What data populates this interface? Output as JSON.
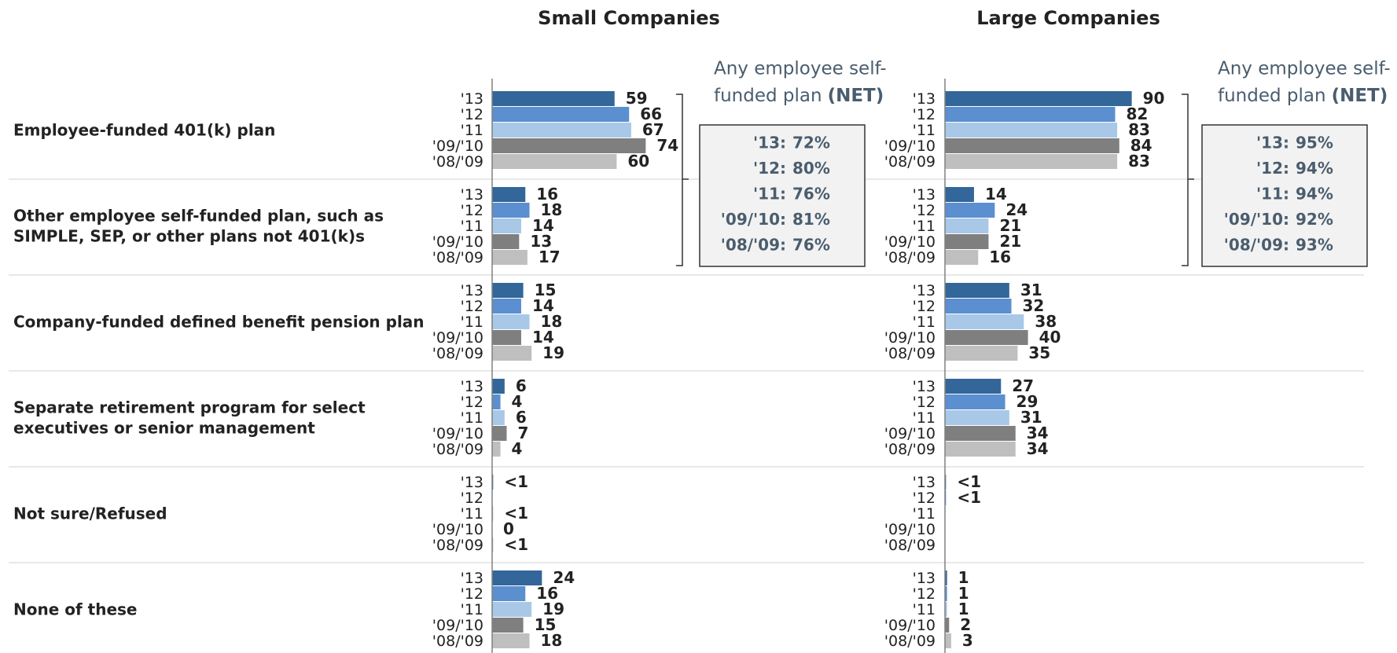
{
  "categories": [
    [
      "Employee-funded 401(k) plan"
    ],
    [
      "Other employee self-funded plan, such as",
      "SIMPLE, SEP, or other plans not 401(k)s"
    ],
    [
      "Company-funded defined benefit pension plan"
    ],
    [
      "Separate retirement program for select",
      "executives or senior management"
    ],
    [
      "Not sure/Refused"
    ],
    [
      "None of these"
    ]
  ],
  "chart_data": [
    {
      "type": "bar",
      "orientation": "horizontal",
      "title": "Small Companies",
      "xlim": [
        0,
        100
      ],
      "series": [
        {
          "name": "'13",
          "color": "#336699",
          "values": [
            59,
            16,
            15,
            6,
            0.5,
            24
          ],
          "value_labels": [
            "59",
            "16",
            "15",
            "6",
            "<1",
            "24"
          ]
        },
        {
          "name": "'12",
          "color": "#5b8fcf",
          "values": [
            66,
            18,
            14,
            4,
            null,
            16
          ]
        },
        {
          "name": "'11",
          "color": "#a9c8e8",
          "values": [
            67,
            14,
            18,
            6,
            0.5,
            19
          ],
          "value_labels": [
            "67",
            "14",
            "18",
            "6",
            "<1",
            "19"
          ]
        },
        {
          "name": "'09/'10",
          "color": "#7f7f7f",
          "values": [
            74,
            13,
            14,
            7,
            0,
            15
          ]
        },
        {
          "name": "'08/'09",
          "color": "#bfbfbf",
          "values": [
            60,
            17,
            19,
            4,
            0.5,
            18
          ],
          "value_labels": [
            "60",
            "17",
            "19",
            "4",
            "<1",
            "18"
          ]
        }
      ],
      "net": {
        "label_lines": [
          "Any employee self-",
          "funded plan"
        ],
        "suffix": "(NET)",
        "labels": [
          "'13:",
          "'12:",
          "'11:",
          "'09/'10:",
          "'08/'09:"
        ],
        "values": [
          72,
          80,
          76,
          81,
          76
        ],
        "value_labels": [
          "72%",
          "80%",
          "76%",
          "81%",
          "76%"
        ]
      }
    },
    {
      "type": "bar",
      "orientation": "horizontal",
      "title": "Large Companies",
      "xlim": [
        0,
        100
      ],
      "series": [
        {
          "name": "'13",
          "color": "#336699",
          "values": [
            90,
            14,
            31,
            27,
            0.5,
            1
          ],
          "value_labels": [
            "90",
            "14",
            "31",
            "27",
            "<1",
            "1"
          ]
        },
        {
          "name": "'12",
          "color": "#5b8fcf",
          "values": [
            82,
            24,
            32,
            29,
            0.5,
            1
          ],
          "value_labels": [
            "82",
            "24",
            "32",
            "29",
            "<1",
            "1"
          ]
        },
        {
          "name": "'11",
          "color": "#a9c8e8",
          "values": [
            83,
            21,
            38,
            31,
            null,
            1
          ]
        },
        {
          "name": "'09/'10",
          "color": "#7f7f7f",
          "values": [
            84,
            21,
            40,
            34,
            null,
            2
          ]
        },
        {
          "name": "'08/'09",
          "color": "#bfbfbf",
          "values": [
            83,
            16,
            35,
            34,
            null,
            3
          ]
        }
      ],
      "net": {
        "label_lines": [
          "Any employee self-",
          "funded plan"
        ],
        "suffix": "(NET)",
        "labels": [
          "'13:",
          "'12:",
          "'11:",
          "'09/'10:",
          "'08/'09:"
        ],
        "values": [
          95,
          94,
          94,
          92,
          93
        ],
        "value_labels": [
          "95%",
          "94%",
          "94%",
          "92%",
          "93%"
        ]
      }
    }
  ]
}
